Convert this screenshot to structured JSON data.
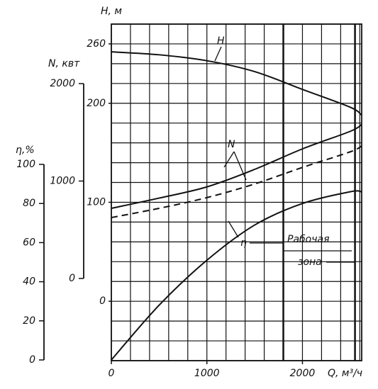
{
  "chart_data": {
    "type": "line",
    "xlabel": "Q, м³/ч",
    "ylabel": "H, м",
    "y2label": "N, квт",
    "y3label": "η,%",
    "x": [
      0,
      500,
      1000,
      1500,
      2000,
      2500,
      2620
    ],
    "series": [
      {
        "color": "#111111",
        "axis": "y",
        "dash": false,
        "values": [
          252,
          249,
          243,
          232,
          214,
          196,
          188
        ]
      },
      {
        "color": "#111111",
        "axis": "y2",
        "dash": false,
        "values": [
          720,
          825,
          940,
          1120,
          1330,
          1510,
          1580
        ]
      },
      {
        "color": "#111111",
        "axis": "y2",
        "dash": true,
        "values": [
          625,
          720,
          830,
          970,
          1140,
          1300,
          1360
        ]
      },
      {
        "color": "#111111",
        "axis": "y3",
        "dash": false,
        "values": [
          0,
          28,
          51,
          69,
          80,
          86,
          86
        ]
      }
    ],
    "annotations": [
      "H",
      "N",
      "η"
    ],
    "work_zone": {
      "label": [
        "Рабочая",
        "зона"
      ],
      "range": [
        1800,
        2550
      ]
    },
    "xlim": [
      0,
      2620
    ],
    "xticks": [
      0,
      1000,
      2000
    ],
    "ylim": [
      -60,
      280
    ],
    "yticks": [
      0,
      100,
      200,
      260
    ],
    "y2lim": [
      0,
      2000
    ],
    "y2ticks": [
      0,
      1000,
      2000
    ],
    "y3lim": [
      0,
      100
    ],
    "y3ticks": [
      0,
      20,
      40,
      60,
      80,
      100
    ],
    "grid": true,
    "grid_step": {
      "x": 200,
      "y": 20
    }
  }
}
